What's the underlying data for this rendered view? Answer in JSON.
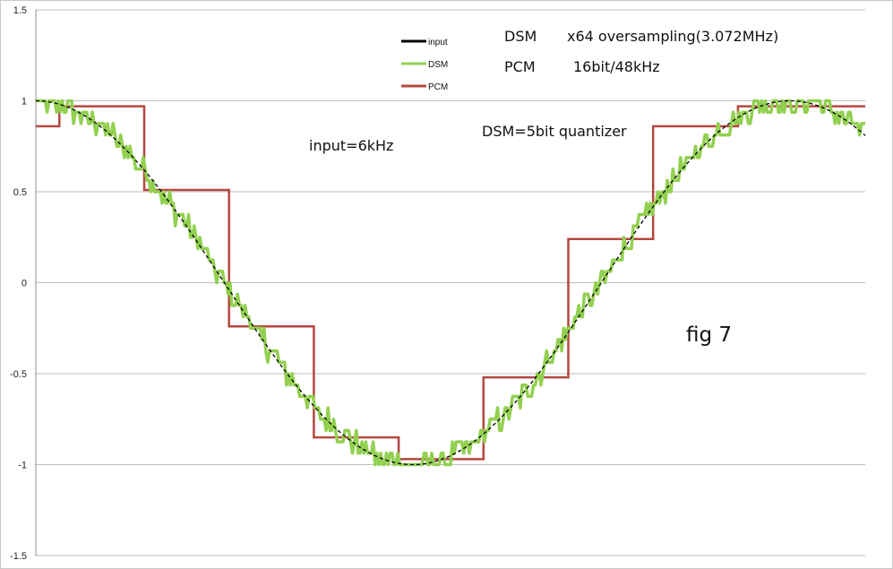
{
  "chart_data": {
    "type": "line",
    "title": "",
    "xlabel": "",
    "ylabel": "",
    "ylim": [
      -1.5,
      1.5
    ],
    "yticks": [
      1.5,
      1,
      0.5,
      0,
      -0.5,
      -1,
      -1.5
    ],
    "ytick_labels": [
      "1.5",
      "1",
      "0.5",
      "0",
      "-0.5",
      "-1",
      "-1.5"
    ],
    "grid": "horizontal",
    "legend_position": "top-center",
    "x_range": [
      0,
      1.1
    ],
    "series": [
      {
        "name": "input",
        "color": "#000000",
        "generator": "cos",
        "cycles_per_unit": 1.0,
        "samples": 440
      },
      {
        "name": "DSM",
        "color": "#92d050",
        "generator": "dsm_noisy_cos",
        "quantizer_levels": 32,
        "noise_amplitude": 0.06,
        "samples": 440
      },
      {
        "name": "PCM",
        "color": "#b5473f",
        "generator": "step",
        "x": [
          0,
          0.03125,
          0.14375,
          0.25625,
          0.36875,
          0.48125,
          0.59375,
          0.70625,
          0.81875,
          0.93125,
          1.04375,
          1.1
        ],
        "values": [
          0.86,
          0.97,
          0.51,
          -0.24,
          -0.85,
          -0.97,
          -0.52,
          0.24,
          0.86,
          0.97,
          0.97,
          0.97
        ]
      }
    ],
    "annotations": [
      {
        "text": "DSM",
        "position": "top-center"
      },
      {
        "text": "x64 oversampling(3.072MHz)",
        "position": "top-right"
      },
      {
        "text": "PCM",
        "position": "top-center"
      },
      {
        "text": "16bit/48kHz",
        "position": "top-right"
      },
      {
        "text": "DSM=5bit quantizer",
        "position": "upper-center"
      },
      {
        "text": "input=6kHz",
        "position": "upper-left-center"
      },
      {
        "text": "fig 7",
        "position": "right-middle"
      }
    ]
  }
}
